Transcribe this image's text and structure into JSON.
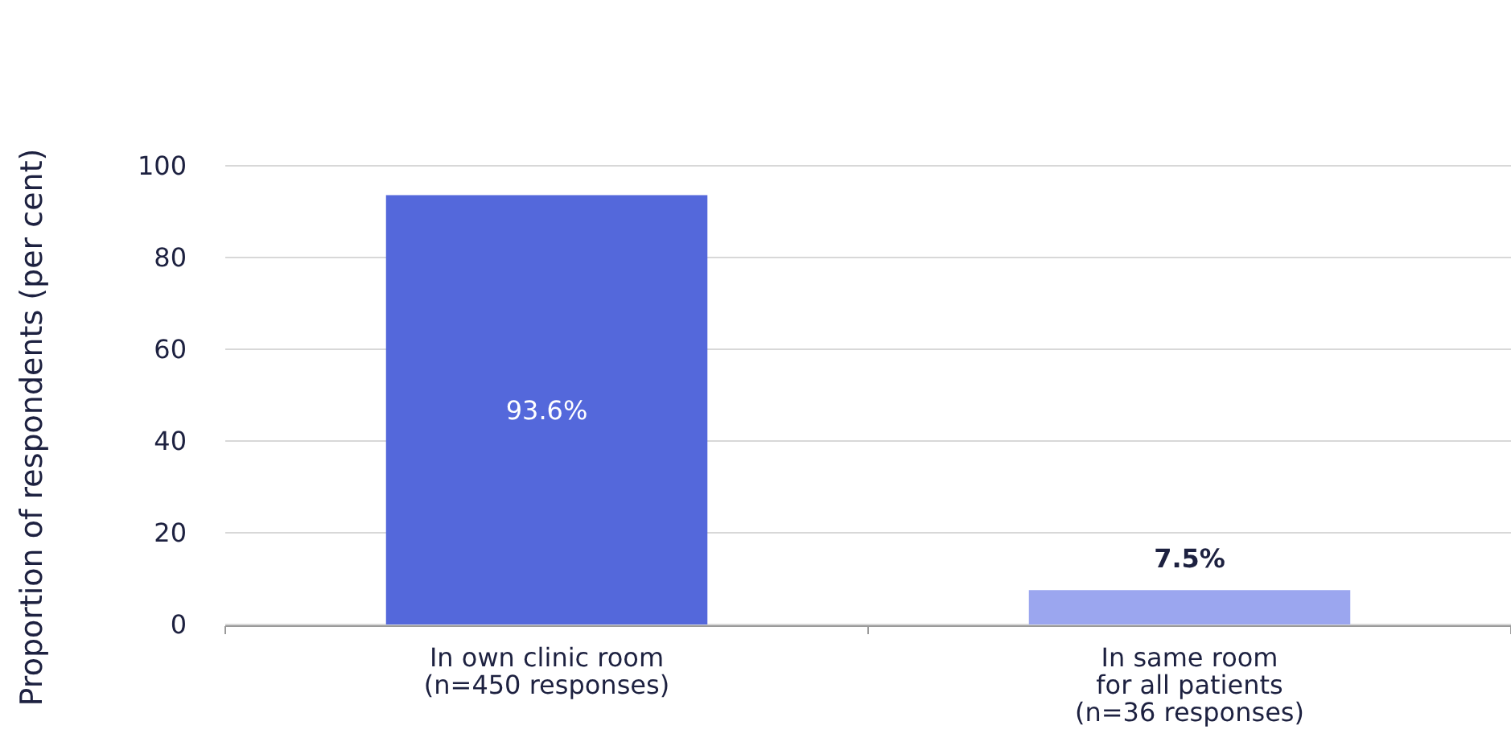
{
  "chart_data": {
    "type": "bar",
    "ylabel": "Proportion of respondents (per cent)",
    "categories": [
      "In own clinic room\n(n=450 responses)",
      "In same room\nfor all patients\n(n=36 responses)"
    ],
    "values": [
      93.6,
      7.5
    ],
    "colors": [
      "#5468db",
      "#9ba6ef"
    ],
    "value_labels": [
      "93.6%",
      "7.5%"
    ],
    "ylim": [
      0,
      100
    ],
    "yticks": [
      0,
      20,
      40,
      60,
      80,
      100
    ],
    "grid": "y"
  }
}
